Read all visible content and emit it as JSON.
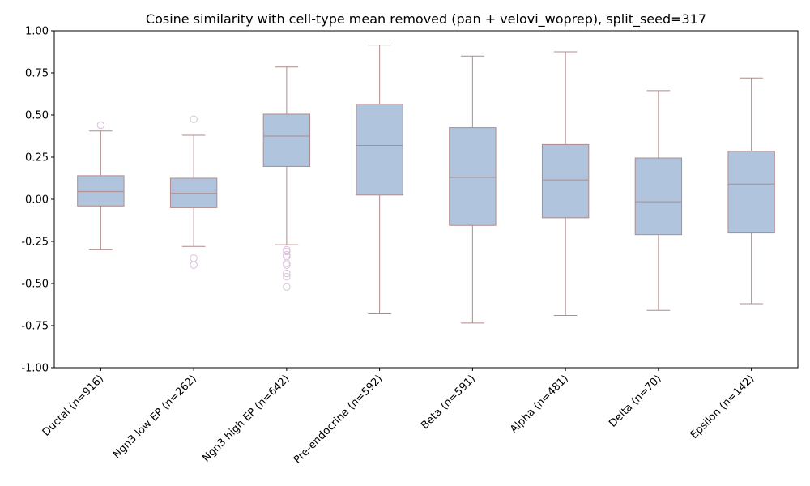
{
  "chart_data": {
    "type": "box",
    "title": "Cosine similarity with cell-type mean removed (pan + velovi_woprep), split_seed=317",
    "xlabel": "",
    "ylabel": "",
    "ylim": [
      -1.0,
      1.0
    ],
    "yticks": [
      "-1.00",
      "-0.75",
      "-0.50",
      "-0.25",
      "0.00",
      "0.25",
      "0.50",
      "0.75",
      "1.00"
    ],
    "grid": false,
    "colors": {
      "box_fill": "#b0c4de",
      "box_edge": "#b08b8b",
      "outlier": "#d8bfd8"
    },
    "categories": [
      "Ductal (n=916)",
      "Ngn3 low EP (n=262)",
      "Ngn3 high EP (n=642)",
      "Pre-endocrine (n=592)",
      "Beta (n=591)",
      "Alpha (n=481)",
      "Delta (n=70)",
      "Epsilon (n=142)"
    ],
    "boxes": [
      {
        "whisker_low": -0.3,
        "q1": -0.04,
        "median": 0.045,
        "q3": 0.14,
        "whisker_high": 0.405,
        "outliers": [
          0.44
        ]
      },
      {
        "whisker_low": -0.28,
        "q1": -0.05,
        "median": 0.035,
        "q3": 0.125,
        "whisker_high": 0.38,
        "outliers": [
          0.475,
          -0.35,
          -0.39
        ]
      },
      {
        "whisker_low": -0.27,
        "q1": 0.195,
        "median": 0.375,
        "q3": 0.505,
        "whisker_high": 0.785,
        "outliers": [
          -0.3,
          -0.31,
          -0.33,
          -0.34,
          -0.38,
          -0.39,
          -0.44,
          -0.46,
          -0.52
        ]
      },
      {
        "whisker_low": -0.68,
        "q1": 0.025,
        "median": 0.32,
        "q3": 0.565,
        "whisker_high": 0.915,
        "outliers": []
      },
      {
        "whisker_low": -0.735,
        "q1": -0.155,
        "median": 0.13,
        "q3": 0.425,
        "whisker_high": 0.85,
        "outliers": []
      },
      {
        "whisker_low": -0.69,
        "q1": -0.11,
        "median": 0.115,
        "q3": 0.325,
        "whisker_high": 0.875,
        "outliers": []
      },
      {
        "whisker_low": -0.66,
        "q1": -0.21,
        "median": -0.015,
        "q3": 0.245,
        "whisker_high": 0.645,
        "outliers": []
      },
      {
        "whisker_low": -0.62,
        "q1": -0.2,
        "median": 0.09,
        "q3": 0.285,
        "whisker_high": 0.72,
        "outliers": []
      }
    ]
  }
}
